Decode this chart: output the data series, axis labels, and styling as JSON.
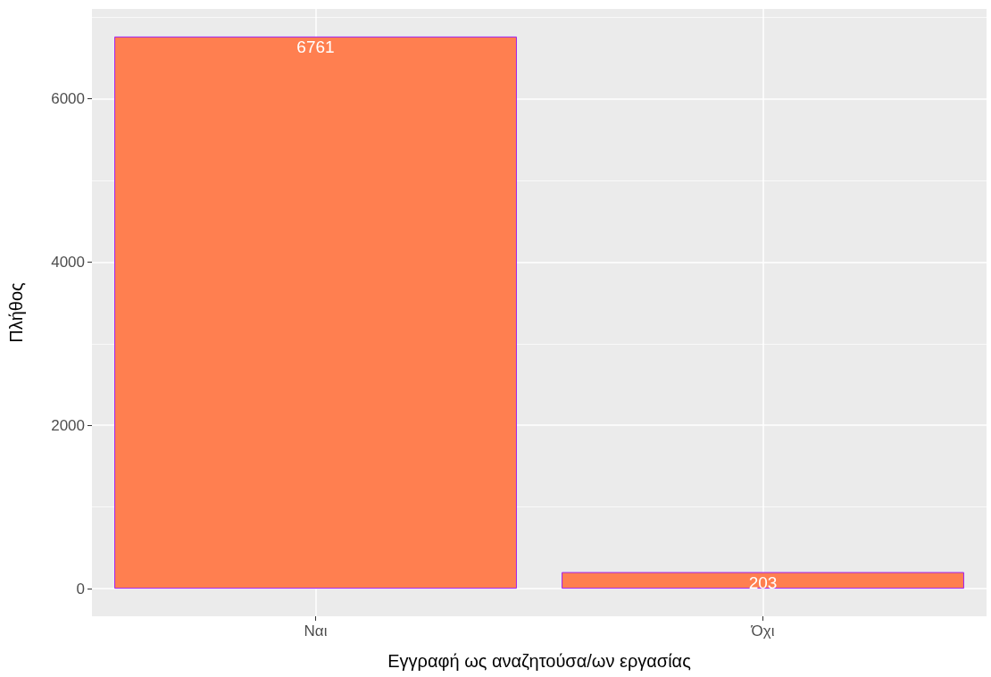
{
  "chart_data": {
    "type": "bar",
    "xlabel": "Εγγραφή ως αναζητούσα/ων εργασίας",
    "ylabel": "Πλήθος",
    "categories": [
      "Ναι",
      "Όχι"
    ],
    "values": [
      6761,
      203
    ],
    "color": "#ff7f50",
    "ylim": [
      -338,
      7099
    ],
    "yticks": [
      0,
      2000,
      4000,
      6000
    ],
    "grid": true,
    "data_labels": true
  }
}
